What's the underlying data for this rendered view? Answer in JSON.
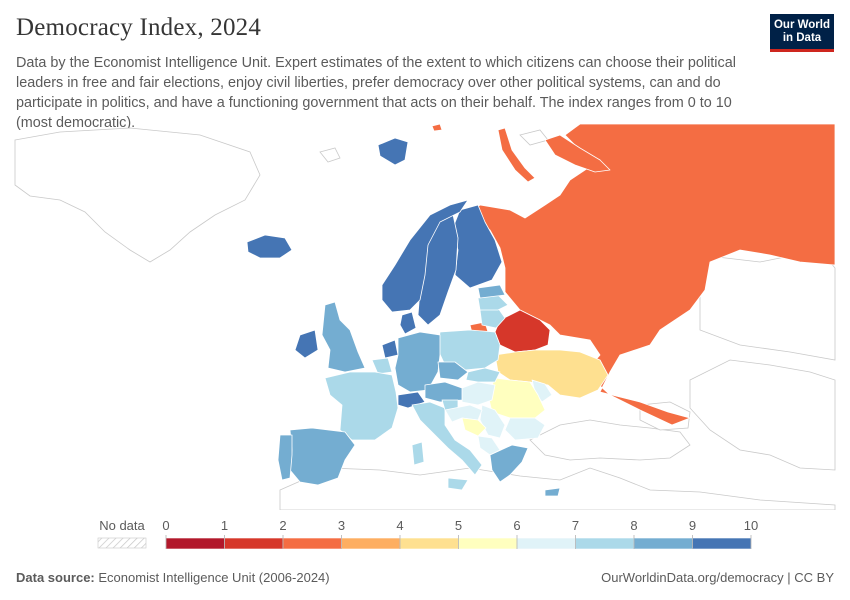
{
  "header": {
    "title": "Democracy Index, 2024",
    "subtitle": "Data by the Economist Intelligence Unit. Expert estimates of the extent to which citizens can choose their political leaders in free and fair elections, enjoy civil liberties, prefer democracy over other political systems, can and do participate in politics, and have a functioning government that acts on their behalf. The index ranges from 0 to 10 (most democratic).",
    "logo_line1": "Our World",
    "logo_line2": "in Data"
  },
  "legend": {
    "no_data_label": "No data",
    "ticks": [
      "0",
      "1",
      "2",
      "3",
      "4",
      "5",
      "6",
      "7",
      "8",
      "9",
      "10"
    ],
    "colors": [
      "#b2182b",
      "#d6372a",
      "#f46d43",
      "#fdae61",
      "#fee090",
      "#ffffbf",
      "#e0f3f8",
      "#abd9e9",
      "#74add1",
      "#4575b4"
    ]
  },
  "map_data": {
    "type": "choropleth",
    "region": "Europe",
    "regions": [
      {
        "name": "Russia",
        "value": 2.0
      },
      {
        "name": "Belarus",
        "value": 1.9
      },
      {
        "name": "Ukraine",
        "value": 5.0
      },
      {
        "name": "Moldova",
        "value": 6.0
      },
      {
        "name": "Romania",
        "value": 6.5
      },
      {
        "name": "Bulgaria",
        "value": 6.5
      },
      {
        "name": "Serbia",
        "value": 6.3
      },
      {
        "name": "Bosnia and Herzegovina",
        "value": 5.0
      },
      {
        "name": "Hungary",
        "value": 6.7
      },
      {
        "name": "Slovakia",
        "value": 7.0
      },
      {
        "name": "Poland",
        "value": 7.4
      },
      {
        "name": "Lithuania",
        "value": 7.3
      },
      {
        "name": "Latvia",
        "value": 7.4
      },
      {
        "name": "Estonia",
        "value": 8.0
      },
      {
        "name": "Finland",
        "value": 9.3
      },
      {
        "name": "Sweden",
        "value": 9.3
      },
      {
        "name": "Norway",
        "value": 9.8
      },
      {
        "name": "Denmark",
        "value": 9.3
      },
      {
        "name": "Iceland",
        "value": 9.5
      },
      {
        "name": "Ireland",
        "value": 9.2
      },
      {
        "name": "United Kingdom",
        "value": 8.3
      },
      {
        "name": "Netherlands",
        "value": 9.0
      },
      {
        "name": "Belgium",
        "value": 7.6
      },
      {
        "name": "Germany",
        "value": 8.7
      },
      {
        "name": "Czechia",
        "value": 7.9
      },
      {
        "name": "Austria",
        "value": 8.3
      },
      {
        "name": "Switzerland",
        "value": 9.3
      },
      {
        "name": "France",
        "value": 7.9
      },
      {
        "name": "Spain",
        "value": 8.1
      },
      {
        "name": "Portugal",
        "value": 8.1
      },
      {
        "name": "Italy",
        "value": 7.6
      },
      {
        "name": "Slovenia",
        "value": 7.8
      },
      {
        "name": "Croatia",
        "value": 6.5
      },
      {
        "name": "Greece",
        "value": 8.0
      },
      {
        "name": "Svalbard",
        "value": 9.8
      },
      {
        "name": "Kaliningrad",
        "value": 2.0
      }
    ]
  },
  "footer": {
    "source_label": "Data source:",
    "source_text": "Economist Intelligence Unit (2006-2024)",
    "url_text": "OurWorldinData.org/democracy | CC BY"
  }
}
